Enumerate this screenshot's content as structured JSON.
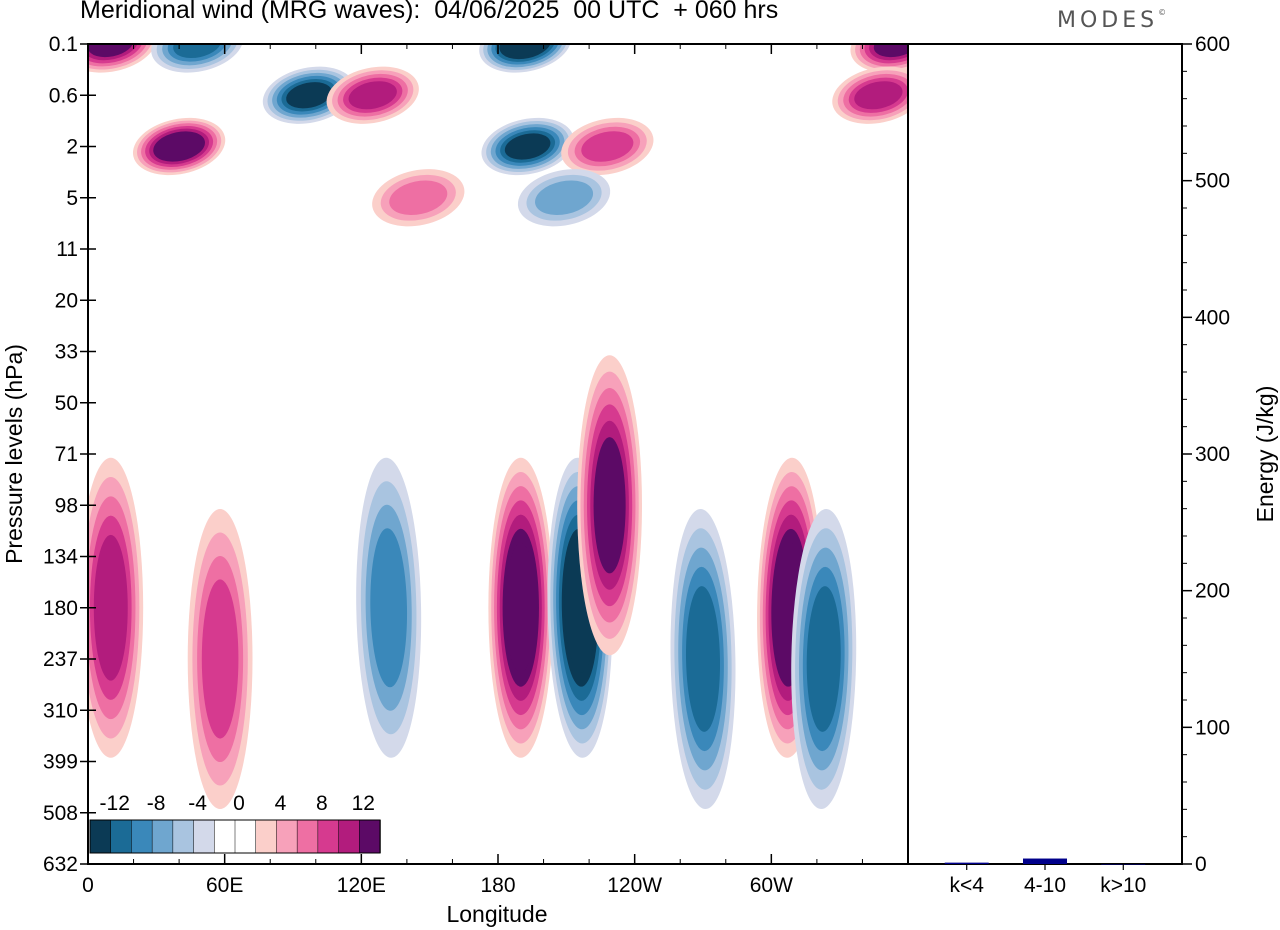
{
  "header": {
    "title": "Meridional wind (MRG waves):  04/06/2025  00 UTC  + 060 hrs",
    "logo": "MODES",
    "logo_mark": "©"
  },
  "chart_data": [
    {
      "type": "heatmap",
      "title": "Meridional wind (MRG waves):  04/06/2025  00 UTC  + 060 hrs",
      "xlabel": "Longitude",
      "ylabel": "Pressure levels (hPa)",
      "x_ticks": [
        "0",
        "60E",
        "120E",
        "180",
        "120W",
        "60W"
      ],
      "x_tick_values": [
        0,
        60,
        120,
        180,
        240,
        300
      ],
      "xlim": [
        0,
        360
      ],
      "y_ticks": [
        "0.1",
        "0.6",
        "2",
        "5",
        "11",
        "20",
        "33",
        "50",
        "71",
        "98",
        "134",
        "180",
        "237",
        "310",
        "399",
        "508",
        "632"
      ],
      "colorbar": {
        "labels": [
          "-12",
          "-8",
          "-4",
          "0",
          "4",
          "8",
          "12"
        ],
        "levels": [
          -14,
          -12,
          -10,
          -8,
          -6,
          -4,
          -2,
          0,
          2,
          4,
          6,
          8,
          10,
          12,
          14
        ],
        "colors": [
          "#0b3a55",
          "#1b6b96",
          "#3a88ba",
          "#6fa6cf",
          "#a9c4e0",
          "#d3d9ea",
          "#ffffff",
          "#ffffff",
          "#fbcfca",
          "#f7a1ba",
          "#ee6fa3",
          "#d63a8f",
          "#b21c7d",
          "#5c0a66"
        ]
      },
      "features": [
        {
          "lon": 190,
          "lev": "180",
          "v": 14
        },
        {
          "lon": 216,
          "lev": "180",
          "v": -14
        },
        {
          "lon": 229,
          "lev": "98",
          "v": 12
        },
        {
          "lon": 308,
          "lev": "180",
          "v": 14
        },
        {
          "lon": 323,
          "lev": "237",
          "v": -10
        },
        {
          "lon": 10,
          "lev": "180",
          "v": 10
        },
        {
          "lon": 58,
          "lev": "237",
          "v": 8
        },
        {
          "lon": 132,
          "lev": "180",
          "v": -8
        },
        {
          "lon": 270,
          "lev": "237",
          "v": -10
        },
        {
          "lon": 192,
          "lev": "0.1",
          "v": -14
        },
        {
          "lon": 193,
          "lev": "2",
          "v": -12
        },
        {
          "lon": 40,
          "lev": "2",
          "v": 14
        },
        {
          "lon": 97,
          "lev": "0.6",
          "v": -12
        },
        {
          "lon": 125,
          "lev": "0.6",
          "v": 10
        },
        {
          "lon": 10,
          "lev": "0.1",
          "v": 12
        },
        {
          "lon": 48,
          "lev": "0.1",
          "v": -10
        },
        {
          "lon": 355,
          "lev": "0.1",
          "v": 12
        },
        {
          "lon": 347,
          "lev": "0.6",
          "v": 10
        },
        {
          "lon": 228,
          "lev": "2",
          "v": 8
        },
        {
          "lon": 145,
          "lev": "5",
          "v": 6
        },
        {
          "lon": 209,
          "lev": "5",
          "v": -6
        }
      ]
    },
    {
      "type": "bar",
      "ylabel": "Energy (J/kg)",
      "categories": [
        "k<4",
        "4-10",
        "k>10"
      ],
      "values": [
        1,
        4,
        0
      ],
      "ylim": [
        0,
        600
      ],
      "y_ticks": [
        "0",
        "100",
        "200",
        "300",
        "400",
        "500",
        "600"
      ],
      "bar_color": "#00008b"
    }
  ]
}
